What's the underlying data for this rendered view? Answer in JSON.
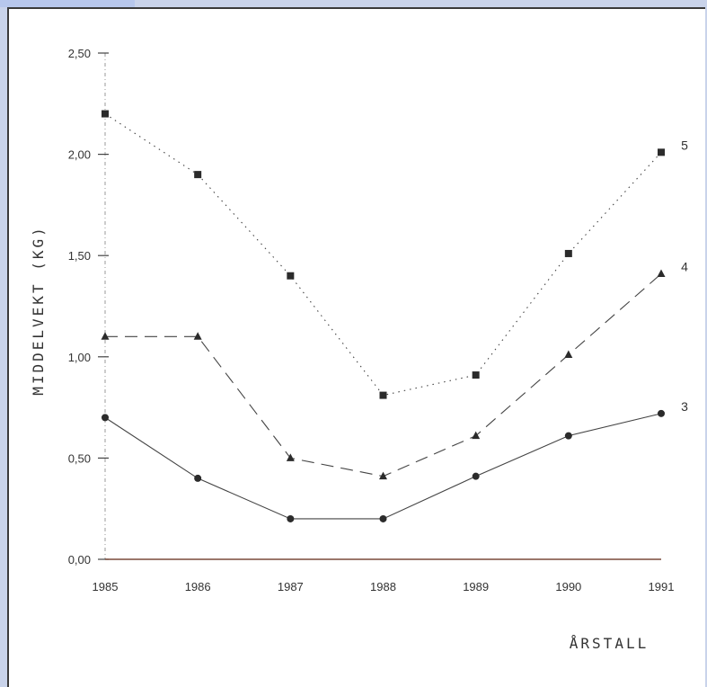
{
  "chart_data": {
    "type": "line",
    "title": "",
    "xlabel": "ÅRSTALL",
    "ylabel": "MIDDELVEKT (KG)",
    "categories": [
      "1985",
      "1986",
      "1987",
      "1988",
      "1989",
      "1990",
      "1991"
    ],
    "y_tick_labels": [
      "0,00",
      "0,50",
      "1,00",
      "1,50",
      "2,00",
      "2,50"
    ],
    "ylim": [
      0,
      2.5
    ],
    "grid": false,
    "series": [
      {
        "name": "3",
        "style": "solid",
        "marker": "circle",
        "values": [
          0.7,
          0.4,
          0.2,
          0.2,
          0.41,
          0.61,
          0.72
        ]
      },
      {
        "name": "4",
        "style": "dashed",
        "marker": "triangle",
        "values": [
          1.1,
          1.1,
          0.5,
          0.41,
          0.61,
          1.01,
          1.41
        ]
      },
      {
        "name": "5",
        "style": "dotted",
        "marker": "square",
        "values": [
          2.2,
          1.9,
          1.4,
          0.81,
          0.91,
          1.51,
          2.01
        ]
      }
    ],
    "colors": {
      "line": "#444444",
      "marker": "#2b2b2b",
      "baseline": "#7a4a3a"
    }
  }
}
